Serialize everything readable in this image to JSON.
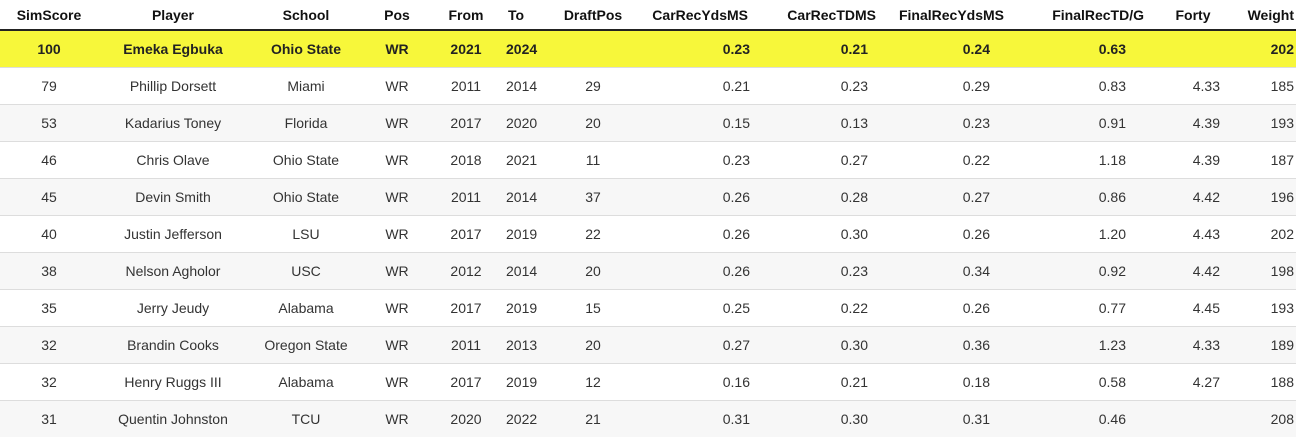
{
  "columns": [
    "SimScore",
    "Player",
    "School",
    "Pos",
    "From",
    "To",
    "DraftPos",
    "CarRecYdsMS",
    "CarRecTDMS",
    "FinalRecYdsMS",
    "FinalRecTD/G",
    "Forty",
    "Weight"
  ],
  "highlight_color": "#f7f73a",
  "sort_icon": "sort-arrows-icon",
  "rows": [
    {
      "simscore": "100",
      "player": "Emeka Egbuka",
      "school": "Ohio State",
      "pos": "WR",
      "from": "2021",
      "to": "2024",
      "draftpos": "",
      "carrecydsms": "0.23",
      "carrectdms": "0.21",
      "finalrecydsms": "0.24",
      "finalrectdg": "0.63",
      "forty": "",
      "weight": "202"
    },
    {
      "simscore": "79",
      "player": "Phillip Dorsett",
      "school": "Miami",
      "pos": "WR",
      "from": "2011",
      "to": "2014",
      "draftpos": "29",
      "carrecydsms": "0.21",
      "carrectdms": "0.23",
      "finalrecydsms": "0.29",
      "finalrectdg": "0.83",
      "forty": "4.33",
      "weight": "185"
    },
    {
      "simscore": "53",
      "player": "Kadarius Toney",
      "school": "Florida",
      "pos": "WR",
      "from": "2017",
      "to": "2020",
      "draftpos": "20",
      "carrecydsms": "0.15",
      "carrectdms": "0.13",
      "finalrecydsms": "0.23",
      "finalrectdg": "0.91",
      "forty": "4.39",
      "weight": "193"
    },
    {
      "simscore": "46",
      "player": "Chris Olave",
      "school": "Ohio State",
      "pos": "WR",
      "from": "2018",
      "to": "2021",
      "draftpos": "11",
      "carrecydsms": "0.23",
      "carrectdms": "0.27",
      "finalrecydsms": "0.22",
      "finalrectdg": "1.18",
      "forty": "4.39",
      "weight": "187"
    },
    {
      "simscore": "45",
      "player": "Devin Smith",
      "school": "Ohio State",
      "pos": "WR",
      "from": "2011",
      "to": "2014",
      "draftpos": "37",
      "carrecydsms": "0.26",
      "carrectdms": "0.28",
      "finalrecydsms": "0.27",
      "finalrectdg": "0.86",
      "forty": "4.42",
      "weight": "196"
    },
    {
      "simscore": "40",
      "player": "Justin Jefferson",
      "school": "LSU",
      "pos": "WR",
      "from": "2017",
      "to": "2019",
      "draftpos": "22",
      "carrecydsms": "0.26",
      "carrectdms": "0.30",
      "finalrecydsms": "0.26",
      "finalrectdg": "1.20",
      "forty": "4.43",
      "weight": "202"
    },
    {
      "simscore": "38",
      "player": "Nelson Agholor",
      "school": "USC",
      "pos": "WR",
      "from": "2012",
      "to": "2014",
      "draftpos": "20",
      "carrecydsms": "0.26",
      "carrectdms": "0.23",
      "finalrecydsms": "0.34",
      "finalrectdg": "0.92",
      "forty": "4.42",
      "weight": "198"
    },
    {
      "simscore": "35",
      "player": "Jerry Jeudy",
      "school": "Alabama",
      "pos": "WR",
      "from": "2017",
      "to": "2019",
      "draftpos": "15",
      "carrecydsms": "0.25",
      "carrectdms": "0.22",
      "finalrecydsms": "0.26",
      "finalrectdg": "0.77",
      "forty": "4.45",
      "weight": "193"
    },
    {
      "simscore": "32",
      "player": "Brandin Cooks",
      "school": "Oregon State",
      "pos": "WR",
      "from": "2011",
      "to": "2013",
      "draftpos": "20",
      "carrecydsms": "0.27",
      "carrectdms": "0.30",
      "finalrecydsms": "0.36",
      "finalrectdg": "1.23",
      "forty": "4.33",
      "weight": "189"
    },
    {
      "simscore": "32",
      "player": "Henry Ruggs III",
      "school": "Alabama",
      "pos": "WR",
      "from": "2017",
      "to": "2019",
      "draftpos": "12",
      "carrecydsms": "0.16",
      "carrectdms": "0.21",
      "finalrecydsms": "0.18",
      "finalrectdg": "0.58",
      "forty": "4.27",
      "weight": "188"
    },
    {
      "simscore": "31",
      "player": "Quentin Johnston",
      "school": "TCU",
      "pos": "WR",
      "from": "2020",
      "to": "2022",
      "draftpos": "21",
      "carrecydsms": "0.31",
      "carrectdms": "0.30",
      "finalrecydsms": "0.31",
      "finalrectdg": "0.46",
      "forty": "",
      "weight": "208"
    }
  ]
}
